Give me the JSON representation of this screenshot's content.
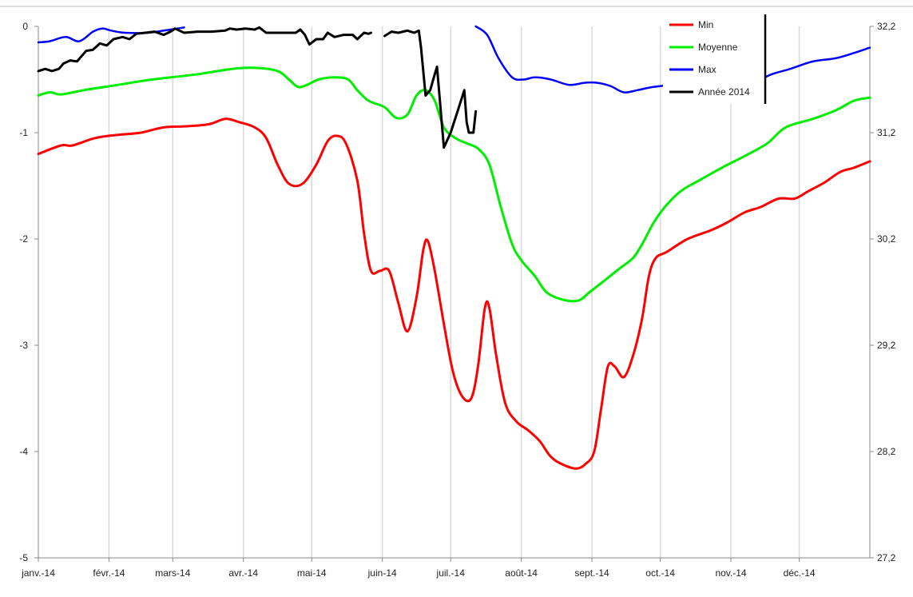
{
  "chart_data": {
    "type": "line",
    "title": "",
    "xlabel": "",
    "ylabel": "",
    "y_left_lim": [
      -5,
      0
    ],
    "y_left_ticks": [
      "0",
      "-1",
      "-2",
      "-3",
      "-4",
      "-5"
    ],
    "y_left_tick_values": [
      0,
      -1,
      -2,
      -3,
      -4,
      -5
    ],
    "y_right_lim": [
      27.2,
      32.2
    ],
    "y_right_ticks": [
      "32,2",
      "31,2",
      "30,2",
      "29,2",
      "28,2",
      "27,2"
    ],
    "x_range_days": [
      0,
      365
    ],
    "x_ticks": [
      "janv.-14",
      "févr.-14",
      "mars-14",
      "avr.-14",
      "mai-14",
      "juin-14",
      "juil.-14",
      "août-14",
      "sept.-14",
      "oct.-14",
      "nov.-14",
      "déc.-14"
    ],
    "x_tick_days": [
      0,
      31,
      59,
      90,
      120,
      151,
      181,
      212,
      243,
      273,
      304,
      334
    ],
    "grid": "vertical",
    "legend_position": "top-right",
    "series": [
      {
        "name": "Min",
        "color": "#ff0000",
        "width": 3,
        "points": [
          [
            0,
            -1.2
          ],
          [
            10,
            -1.12
          ],
          [
            15,
            -1.12
          ],
          [
            25,
            -1.05
          ],
          [
            35,
            -1.02
          ],
          [
            45,
            -1.0
          ],
          [
            55,
            -0.95
          ],
          [
            65,
            -0.94
          ],
          [
            75,
            -0.92
          ],
          [
            82,
            -0.87
          ],
          [
            88,
            -0.9
          ],
          [
            95,
            -0.95
          ],
          [
            100,
            -1.05
          ],
          [
            105,
            -1.3
          ],
          [
            110,
            -1.48
          ],
          [
            116,
            -1.48
          ],
          [
            122,
            -1.3
          ],
          [
            127,
            -1.08
          ],
          [
            131,
            -1.03
          ],
          [
            135,
            -1.1
          ],
          [
            140,
            -1.45
          ],
          [
            143,
            -1.95
          ],
          [
            146,
            -2.3
          ],
          [
            150,
            -2.3
          ],
          [
            154,
            -2.3
          ],
          [
            158,
            -2.6
          ],
          [
            162,
            -2.87
          ],
          [
            166,
            -2.55
          ],
          [
            169,
            -2.1
          ],
          [
            171,
            -2.02
          ],
          [
            174,
            -2.3
          ],
          [
            178,
            -2.8
          ],
          [
            182,
            -3.25
          ],
          [
            186,
            -3.48
          ],
          [
            190,
            -3.5
          ],
          [
            193,
            -3.2
          ],
          [
            196,
            -2.65
          ],
          [
            198,
            -2.65
          ],
          [
            201,
            -3.1
          ],
          [
            205,
            -3.55
          ],
          [
            210,
            -3.72
          ],
          [
            215,
            -3.8
          ],
          [
            220,
            -3.9
          ],
          [
            225,
            -4.05
          ],
          [
            230,
            -4.12
          ],
          [
            236,
            -4.16
          ],
          [
            240,
            -4.12
          ],
          [
            244,
            -4.0
          ],
          [
            247,
            -3.6
          ],
          [
            250,
            -3.2
          ],
          [
            253,
            -3.2
          ],
          [
            257,
            -3.3
          ],
          [
            261,
            -3.1
          ],
          [
            265,
            -2.75
          ],
          [
            268,
            -2.35
          ],
          [
            271,
            -2.18
          ],
          [
            276,
            -2.12
          ],
          [
            285,
            -2.0
          ],
          [
            295,
            -1.92
          ],
          [
            302,
            -1.85
          ],
          [
            310,
            -1.75
          ],
          [
            317,
            -1.7
          ],
          [
            325,
            -1.62
          ],
          [
            332,
            -1.62
          ],
          [
            338,
            -1.55
          ],
          [
            345,
            -1.47
          ],
          [
            352,
            -1.37
          ],
          [
            358,
            -1.33
          ],
          [
            365,
            -1.27
          ]
        ]
      },
      {
        "name": "Moyenne",
        "color": "#00ee00",
        "width": 3,
        "points": [
          [
            0,
            -0.65
          ],
          [
            5,
            -0.62
          ],
          [
            10,
            -0.64
          ],
          [
            20,
            -0.6
          ],
          [
            35,
            -0.55
          ],
          [
            50,
            -0.5
          ],
          [
            70,
            -0.45
          ],
          [
            85,
            -0.4
          ],
          [
            95,
            -0.39
          ],
          [
            105,
            -0.42
          ],
          [
            110,
            -0.5
          ],
          [
            114,
            -0.57
          ],
          [
            118,
            -0.55
          ],
          [
            123,
            -0.5
          ],
          [
            130,
            -0.48
          ],
          [
            136,
            -0.5
          ],
          [
            140,
            -0.6
          ],
          [
            145,
            -0.7
          ],
          [
            152,
            -0.76
          ],
          [
            157,
            -0.86
          ],
          [
            162,
            -0.83
          ],
          [
            166,
            -0.65
          ],
          [
            170,
            -0.6
          ],
          [
            174,
            -0.7
          ],
          [
            178,
            -0.95
          ],
          [
            183,
            -1.05
          ],
          [
            188,
            -1.1
          ],
          [
            193,
            -1.15
          ],
          [
            198,
            -1.3
          ],
          [
            203,
            -1.7
          ],
          [
            208,
            -2.05
          ],
          [
            212,
            -2.2
          ],
          [
            218,
            -2.35
          ],
          [
            223,
            -2.5
          ],
          [
            230,
            -2.57
          ],
          [
            237,
            -2.58
          ],
          [
            242,
            -2.5
          ],
          [
            248,
            -2.4
          ],
          [
            255,
            -2.28
          ],
          [
            261,
            -2.18
          ],
          [
            265,
            -2.05
          ],
          [
            270,
            -1.85
          ],
          [
            275,
            -1.7
          ],
          [
            282,
            -1.55
          ],
          [
            290,
            -1.45
          ],
          [
            300,
            -1.33
          ],
          [
            310,
            -1.22
          ],
          [
            320,
            -1.1
          ],
          [
            328,
            -0.95
          ],
          [
            340,
            -0.87
          ],
          [
            350,
            -0.79
          ],
          [
            358,
            -0.7
          ],
          [
            365,
            -0.67
          ]
        ]
      },
      {
        "name": "Max",
        "color": "#0000ff",
        "width": 2.5,
        "segments": [
          [
            [
              0,
              -0.15
            ],
            [
              5,
              -0.14
            ],
            [
              12,
              -0.1
            ],
            [
              18,
              -0.14
            ],
            [
              24,
              -0.05
            ],
            [
              28,
              -0.02
            ],
            [
              32,
              -0.04
            ],
            [
              38,
              -0.06
            ],
            [
              48,
              -0.06
            ],
            [
              58,
              -0.03
            ],
            [
              64,
              -0.01
            ]
          ],
          [
            [
              192,
              0.0
            ],
            [
              197,
              -0.08
            ],
            [
              202,
              -0.3
            ],
            [
              208,
              -0.48
            ],
            [
              213,
              -0.5
            ],
            [
              218,
              -0.48
            ],
            [
              225,
              -0.5
            ],
            [
              233,
              -0.55
            ],
            [
              240,
              -0.53
            ],
            [
              245,
              -0.53
            ],
            [
              251,
              -0.56
            ],
            [
              257,
              -0.62
            ],
            [
              263,
              -0.6
            ],
            [
              270,
              -0.57
            ],
            [
              280,
              -0.55
            ],
            [
              290,
              -0.56
            ],
            [
              300,
              -0.57
            ],
            [
              310,
              -0.55
            ],
            [
              315,
              -0.52
            ],
            [
              322,
              -0.45
            ],
            [
              330,
              -0.4
            ],
            [
              340,
              -0.33
            ],
            [
              350,
              -0.3
            ],
            [
              358,
              -0.25
            ],
            [
              365,
              -0.2
            ]
          ]
        ]
      },
      {
        "name": "Année 2014",
        "color": "#000000",
        "width": 3,
        "segments": [
          [
            [
              0,
              -0.42
            ],
            [
              3,
              -0.4
            ],
            [
              6,
              -0.42
            ],
            [
              9,
              -0.4
            ],
            [
              11,
              -0.35
            ],
            [
              14,
              -0.32
            ],
            [
              17,
              -0.33
            ],
            [
              19,
              -0.28
            ],
            [
              21,
              -0.23
            ],
            [
              24,
              -0.22
            ],
            [
              27,
              -0.16
            ],
            [
              30,
              -0.18
            ],
            [
              33,
              -0.12
            ],
            [
              37,
              -0.1
            ],
            [
              40,
              -0.12
            ],
            [
              43,
              -0.07
            ],
            [
              47,
              -0.06
            ],
            [
              51,
              -0.05
            ],
            [
              55,
              -0.08
            ],
            [
              58,
              -0.05
            ],
            [
              60,
              -0.02
            ],
            [
              64,
              -0.06
            ],
            [
              70,
              -0.05
            ],
            [
              76,
              -0.05
            ],
            [
              82,
              -0.04
            ],
            [
              84,
              -0.02
            ],
            [
              87,
              -0.03
            ],
            [
              91,
              -0.02
            ],
            [
              95,
              -0.03
            ],
            [
              97,
              -0.01
            ],
            [
              100,
              -0.06
            ],
            [
              106,
              -0.06
            ],
            [
              113,
              -0.06
            ],
            [
              115,
              -0.03
            ],
            [
              117,
              -0.08
            ],
            [
              119,
              -0.17
            ],
            [
              122,
              -0.12
            ],
            [
              125,
              -0.12
            ],
            [
              127,
              -0.06
            ],
            [
              130,
              -0.1
            ],
            [
              134,
              -0.08
            ],
            [
              138,
              -0.08
            ],
            [
              140,
              -0.12
            ],
            [
              143,
              -0.06
            ],
            [
              145,
              -0.07
            ],
            [
              146,
              -0.06
            ]
          ],
          [
            [
              152,
              -0.09
            ],
            [
              155,
              -0.05
            ],
            [
              158,
              -0.06
            ],
            [
              162,
              -0.04
            ],
            [
              165,
              -0.06
            ],
            [
              167,
              -0.04
            ],
            [
              168,
              -0.2
            ],
            [
              170,
              -0.65
            ],
            [
              172,
              -0.6
            ],
            [
              174,
              -0.45
            ],
            [
              175,
              -0.38
            ],
            [
              178,
              -1.14
            ],
            [
              181,
              -1.0
            ],
            [
              184,
              -0.8
            ],
            [
              187,
              -0.6
            ],
            [
              188,
              -0.9
            ],
            [
              189,
              -1.0
            ],
            [
              191,
              -1.0
            ],
            [
              192,
              -0.8
            ]
          ]
        ]
      }
    ]
  }
}
